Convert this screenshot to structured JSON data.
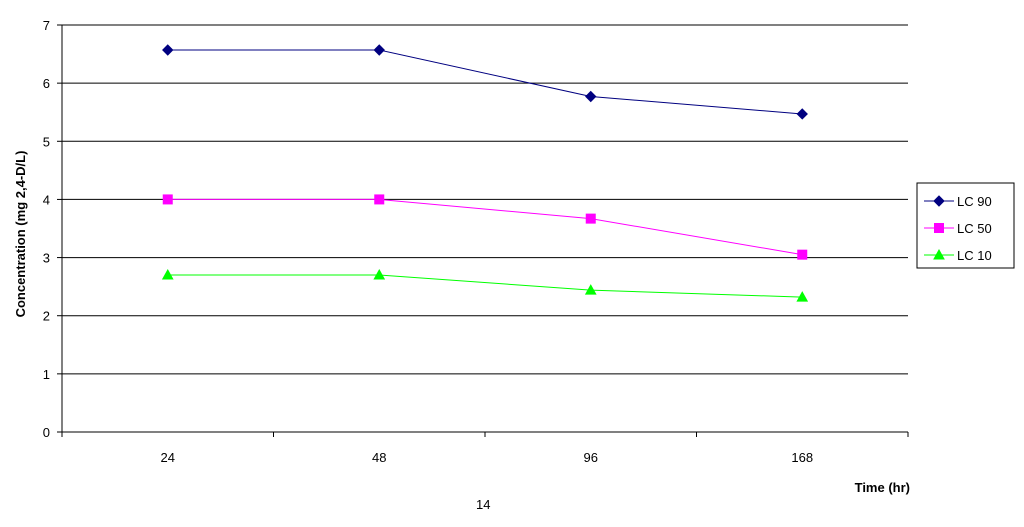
{
  "page_number": "14",
  "chart_data": {
    "type": "line",
    "categories": [
      "24",
      "48",
      "96",
      "168"
    ],
    "xlabel": "Time (hr)",
    "ylabel": "Concentration (mg 2,4-D/L)",
    "ylim": [
      0,
      7
    ],
    "yticks": [
      "0",
      "1",
      "2",
      "3",
      "4",
      "5",
      "6",
      "7"
    ],
    "grid": "horizontal",
    "legend_position": "right",
    "series": [
      {
        "name": "LC 90",
        "values": [
          6.57,
          6.57,
          5.77,
          5.47
        ],
        "color": "#000080",
        "marker": "diamond"
      },
      {
        "name": "LC 50",
        "values": [
          4.0,
          4.0,
          3.67,
          3.05
        ],
        "color": "#FF00FF",
        "marker": "square"
      },
      {
        "name": "LC 10",
        "values": [
          2.7,
          2.7,
          2.44,
          2.32
        ],
        "color": "#00FF00",
        "marker": "triangle"
      }
    ]
  }
}
